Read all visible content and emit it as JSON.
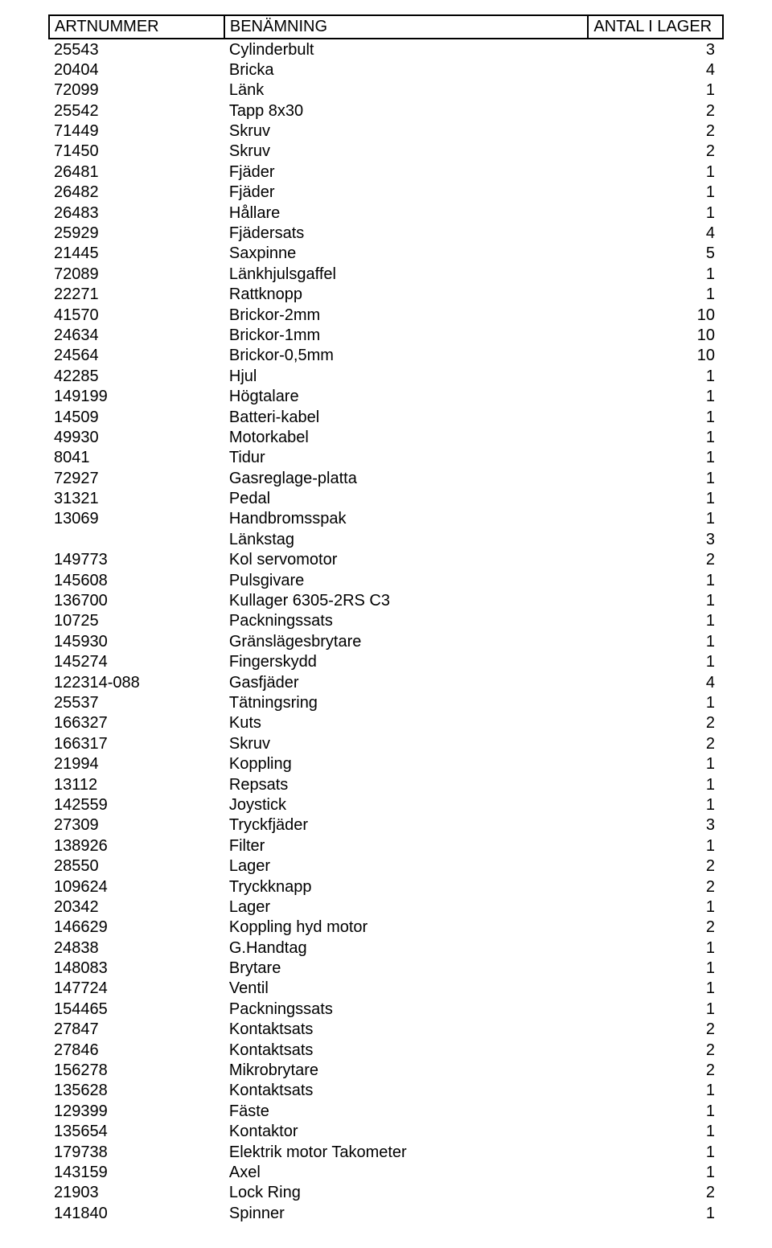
{
  "headers": {
    "art": "ARTNUMMER",
    "name": "BENÄMNING",
    "qty": "ANTAL I LAGER"
  },
  "rows": [
    {
      "art": "25543",
      "name": "Cylinderbult",
      "qty": "3"
    },
    {
      "art": "20404",
      "name": "Bricka",
      "qty": "4"
    },
    {
      "art": "72099",
      "name": "Länk",
      "qty": "1"
    },
    {
      "art": "25542",
      "name": "Tapp 8x30",
      "qty": "2"
    },
    {
      "art": "71449",
      "name": "Skruv",
      "qty": "2"
    },
    {
      "art": "71450",
      "name": "Skruv",
      "qty": "2"
    },
    {
      "art": "26481",
      "name": "Fjäder",
      "qty": "1"
    },
    {
      "art": "26482",
      "name": "Fjäder",
      "qty": "1"
    },
    {
      "art": "26483",
      "name": "Hållare",
      "qty": "1"
    },
    {
      "art": "25929",
      "name": "Fjädersats",
      "qty": "4"
    },
    {
      "art": "21445",
      "name": "Saxpinne",
      "qty": "5"
    },
    {
      "art": "72089",
      "name": "Länkhjulsgaffel",
      "qty": "1"
    },
    {
      "art": "22271",
      "name": "Rattknopp",
      "qty": "1"
    },
    {
      "art": "41570",
      "name": "Brickor-2mm",
      "qty": "10"
    },
    {
      "art": "24634",
      "name": "Brickor-1mm",
      "qty": "10"
    },
    {
      "art": "24564",
      "name": "Brickor-0,5mm",
      "qty": "10"
    },
    {
      "art": "42285",
      "name": "Hjul",
      "qty": "1"
    },
    {
      "art": "149199",
      "name": "Högtalare",
      "qty": "1"
    },
    {
      "art": "14509",
      "name": "Batteri-kabel",
      "qty": "1"
    },
    {
      "art": "49930",
      "name": "Motorkabel",
      "qty": "1"
    },
    {
      "art": "8041",
      "name": "Tidur",
      "qty": "1"
    },
    {
      "art": "72927",
      "name": "Gasreglage-platta",
      "qty": "1"
    },
    {
      "art": "31321",
      "name": "Pedal",
      "qty": "1"
    },
    {
      "art": "13069",
      "name": "Handbromsspak",
      "qty": "1"
    },
    {
      "art": "",
      "name": "Länkstag",
      "qty": "3"
    },
    {
      "art": "149773",
      "name": "Kol servomotor",
      "qty": "2"
    },
    {
      "art": "145608",
      "name": "Pulsgivare",
      "qty": "1"
    },
    {
      "art": "136700",
      "name": "Kullager 6305-2RS C3",
      "qty": "1"
    },
    {
      "art": "10725",
      "name": "Packningssats",
      "qty": "1"
    },
    {
      "art": "145930",
      "name": "Gränslägesbrytare",
      "qty": "1"
    },
    {
      "art": "145274",
      "name": "Fingerskydd",
      "qty": "1"
    },
    {
      "art": "122314-088",
      "name": "Gasfjäder",
      "qty": "4"
    },
    {
      "art": "25537",
      "name": "Tätningsring",
      "qty": "1"
    },
    {
      "art": "166327",
      "name": "Kuts",
      "qty": "2"
    },
    {
      "art": "166317",
      "name": "Skruv",
      "qty": "2"
    },
    {
      "art": "21994",
      "name": "Koppling",
      "qty": "1"
    },
    {
      "art": "13112",
      "name": "Repsats",
      "qty": "1"
    },
    {
      "art": "142559",
      "name": "Joystick",
      "qty": "1"
    },
    {
      "art": "27309",
      "name": "Tryckfjäder",
      "qty": "3"
    },
    {
      "art": "138926",
      "name": "Filter",
      "qty": "1"
    },
    {
      "art": "28550",
      "name": "Lager",
      "qty": "2"
    },
    {
      "art": "109624",
      "name": "Tryckknapp",
      "qty": "2"
    },
    {
      "art": "20342",
      "name": "Lager",
      "qty": "1"
    },
    {
      "art": "146629",
      "name": "Koppling hyd motor",
      "qty": "2"
    },
    {
      "art": "24838",
      "name": "G.Handtag",
      "qty": "1"
    },
    {
      "art": "148083",
      "name": "Brytare",
      "qty": "1"
    },
    {
      "art": "147724",
      "name": "Ventil",
      "qty": "1"
    },
    {
      "art": "154465",
      "name": "Packningssats",
      "qty": "1"
    },
    {
      "art": "27847",
      "name": "Kontaktsats",
      "qty": "2"
    },
    {
      "art": "27846",
      "name": "Kontaktsats",
      "qty": "2"
    },
    {
      "art": "156278",
      "name": "Mikrobrytare",
      "qty": "2"
    },
    {
      "art": "135628",
      "name": "Kontaktsats",
      "qty": "1"
    },
    {
      "art": "129399",
      "name": "Fäste",
      "qty": "1"
    },
    {
      "art": "135654",
      "name": "Kontaktor",
      "qty": "1"
    },
    {
      "art": "179738",
      "name": "Elektrik motor Takometer",
      "qty": "1"
    },
    {
      "art": "143159",
      "name": "Axel",
      "qty": "1"
    },
    {
      "art": "21903",
      "name": "Lock Ring",
      "qty": "2"
    },
    {
      "art": "141840",
      "name": "Spinner",
      "qty": "1"
    }
  ]
}
